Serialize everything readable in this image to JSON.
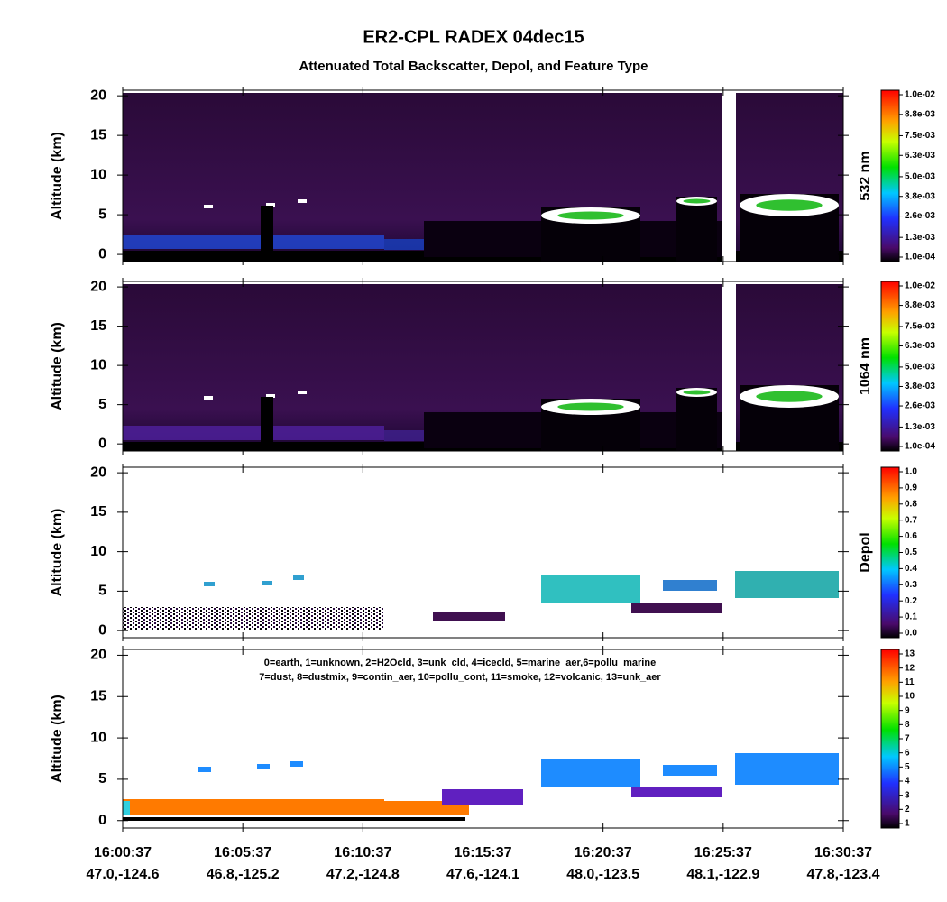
{
  "chart_data": [
    {
      "type": "curtain",
      "title": "ER2-CPL RADEX 04dec15",
      "subtitle": "Attenuated Total Backscatter, Depol, and Feature Type",
      "ylabel": "Altitude (km)",
      "ylim": [
        -0.9,
        20.7
      ],
      "yticks": [
        0,
        5,
        10,
        15,
        20
      ],
      "colorbar_label": "532 nm",
      "clim": [
        0.0001,
        0.01
      ],
      "colorbar_ticks": [
        {
          "value": 0.0001,
          "label": "1.0e-04"
        },
        {
          "value": 0.0013,
          "label": "1.3e-03"
        },
        {
          "value": 0.0026,
          "label": "2.6e-03"
        },
        {
          "value": 0.0038,
          "label": "3.8e-03"
        },
        {
          "value": 0.005,
          "label": "5.0e-03"
        },
        {
          "value": 0.0063,
          "label": "6.3e-03"
        },
        {
          "value": 0.0075,
          "label": "7.5e-03"
        },
        {
          "value": 0.0088,
          "label": "8.8e-03"
        },
        {
          "value": 0.01,
          "label": "1.0e-02"
        }
      ]
    },
    {
      "type": "curtain",
      "ylabel": "Altitude (km)",
      "ylim": [
        -0.9,
        20.7
      ],
      "yticks": [
        0,
        5,
        10,
        15,
        20
      ],
      "colorbar_label": "1064 nm",
      "clim": [
        0.0001,
        0.01
      ],
      "colorbar_ticks": [
        {
          "value": 0.0001,
          "label": "1.0e-04"
        },
        {
          "value": 0.0013,
          "label": "1.3e-03"
        },
        {
          "value": 0.0026,
          "label": "2.6e-03"
        },
        {
          "value": 0.0038,
          "label": "3.8e-03"
        },
        {
          "value": 0.005,
          "label": "5.0e-03"
        },
        {
          "value": 0.0063,
          "label": "6.3e-03"
        },
        {
          "value": 0.0075,
          "label": "7.5e-03"
        },
        {
          "value": 0.0088,
          "label": "8.8e-03"
        },
        {
          "value": 0.01,
          "label": "1.0e-02"
        }
      ]
    },
    {
      "type": "curtain",
      "ylabel": "Altitude (km)",
      "ylim": [
        -0.9,
        20.7
      ],
      "yticks": [
        0,
        5,
        10,
        15,
        20
      ],
      "colorbar_label": "Depol",
      "clim": [
        0,
        1
      ],
      "colorbar_ticks": [
        {
          "value": 0,
          "label": "0.0"
        },
        0.1,
        0.2,
        0.3,
        0.4,
        0.5,
        0.6,
        0.7,
        0.8,
        0.9,
        {
          "value": 1,
          "label": "1.0"
        }
      ]
    },
    {
      "type": "curtain",
      "ylabel": "Altitude (km)",
      "ylim": [
        -0.9,
        20.7
      ],
      "yticks": [
        0,
        5,
        10,
        15,
        20
      ],
      "clim": [
        1,
        13
      ],
      "colorbar_ticks": [
        1,
        2,
        3,
        4,
        5,
        6,
        7,
        8,
        9,
        10,
        11,
        12,
        13
      ],
      "annotations": [
        "0=earth, 1=unknown, 2=H2Ocld, 3=unk_cld, 4=icecld, 5=marine_aer,6=pollu_marine",
        "7=dust, 8=dustmix, 9=contin_aer, 10=pollu_cont, 11=smoke, 12=volcanic, 13=unk_aer"
      ],
      "categories": [
        "16:00:37",
        "16:05:37",
        "16:10:37",
        "16:15:37",
        "16:20:37",
        "16:25:37",
        "16:30:37"
      ],
      "locations": [
        "47.0,-124.6",
        "46.8,-125.2",
        "47.2,-124.8",
        "47.6,-124.1",
        "48.0,-123.5",
        "48.1,-122.9",
        "47.8,-123.4"
      ]
    }
  ]
}
